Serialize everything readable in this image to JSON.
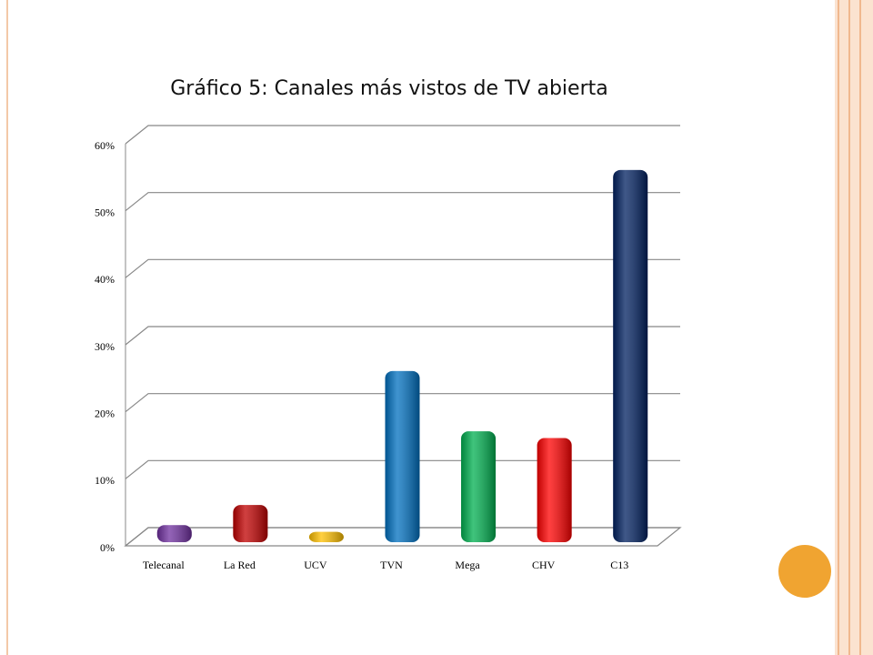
{
  "chart_data": {
    "type": "bar",
    "title": "Gráfico 5: Canales más vistos de TV abierta",
    "categories": [
      "Telecanal",
      "La Red",
      "UCV",
      "TVN",
      "Mega",
      "CHV",
      "C13"
    ],
    "values": [
      2,
      5,
      1,
      25,
      16,
      15,
      55
    ],
    "colors": [
      "#7030a0",
      "#c00000",
      "#ffc000",
      "#0070c0",
      "#00b050",
      "#ff0000",
      "#002060"
    ],
    "ylim": [
      0,
      60
    ],
    "yticks": [
      {
        "value": 0,
        "label": "0%"
      },
      {
        "value": 10,
        "label": "10%"
      },
      {
        "value": 20,
        "label": "20%"
      },
      {
        "value": 30,
        "label": "30%"
      },
      {
        "value": 40,
        "label": "40%"
      },
      {
        "value": 50,
        "label": "50%"
      },
      {
        "value": 60,
        "label": "60%"
      }
    ],
    "grid": true
  }
}
